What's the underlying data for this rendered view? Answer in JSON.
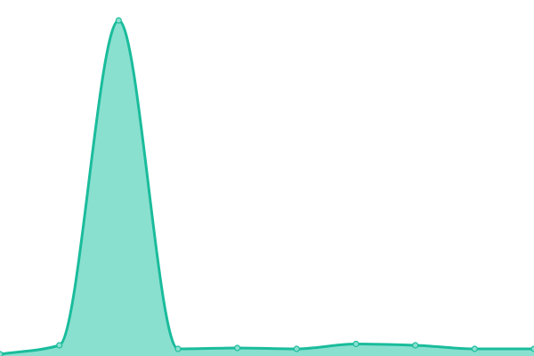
{
  "chart_data": {
    "type": "area",
    "title": "",
    "xlabel": "",
    "ylabel": "",
    "x": [
      0,
      1,
      2,
      3,
      4,
      5,
      6,
      7,
      8,
      9
    ],
    "values": [
      2,
      12,
      377,
      8,
      9,
      8,
      13.5,
      12,
      8,
      8
    ],
    "ylim": [
      0,
      400
    ],
    "grid": false,
    "axes_visible": false,
    "smooth": true,
    "markers": true,
    "colors": {
      "line": "#1abc9c",
      "fill": "#8ae0cf",
      "marker_fill": "#8ae0cf"
    }
  }
}
